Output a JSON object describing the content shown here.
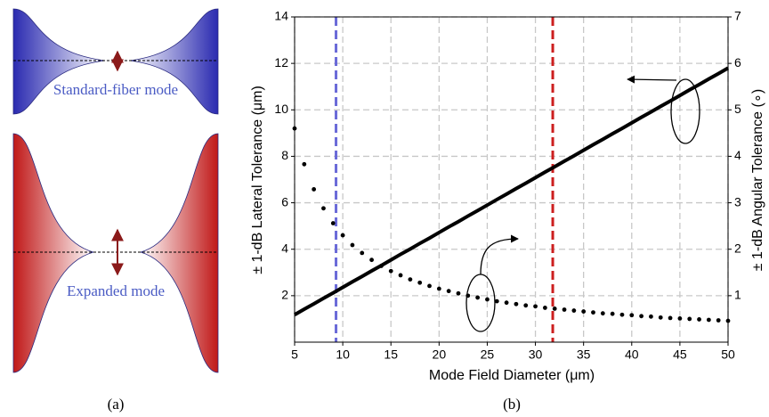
{
  "panel_a": {
    "label": "(a)",
    "top_caption": "Standard-fiber mode",
    "bottom_caption": "Expanded mode"
  },
  "chart_data": {
    "type": "line",
    "panel_label": "(b)",
    "xlabel": "Mode Field Diameter (μm)",
    "ylabel": "± 1-dB Lateral Tolerance (μm)",
    "y2label": "± 1-dB Angular Tolerance (∘)",
    "x": [
      5,
      6,
      7,
      8,
      9,
      10,
      11,
      12,
      13,
      14,
      15,
      16,
      17,
      18,
      19,
      20,
      21,
      22,
      23,
      24,
      25,
      26,
      27,
      28,
      29,
      30,
      31,
      32,
      33,
      34,
      35,
      36,
      37,
      38,
      39,
      40,
      41,
      42,
      43,
      44,
      45,
      46,
      47,
      48,
      49,
      50
    ],
    "series": [
      {
        "color": "#000000",
        "style": "line",
        "values": [
          1.18,
          1.42,
          1.65,
          1.89,
          2.12,
          2.36,
          2.6,
          2.83,
          3.07,
          3.3,
          3.54,
          3.78,
          4.01,
          4.25,
          4.48,
          4.72,
          4.96,
          5.19,
          5.43,
          5.66,
          5.9,
          6.14,
          6.37,
          6.61,
          6.84,
          7.08,
          7.32,
          7.55,
          7.79,
          8.02,
          8.26,
          8.5,
          8.73,
          8.97,
          9.2,
          9.44,
          9.68,
          9.91,
          10.15,
          10.38,
          10.62,
          10.86,
          11.09,
          11.33,
          11.56,
          11.8
        ]
      },
      {
        "color": "#000000",
        "style": "dots",
        "axis": "y2",
        "values": [
          4.6,
          3.83,
          3.29,
          2.88,
          2.56,
          2.3,
          2.09,
          1.92,
          1.77,
          1.64,
          1.53,
          1.44,
          1.35,
          1.28,
          1.21,
          1.15,
          1.1,
          1.05,
          1,
          0.96,
          0.92,
          0.88,
          0.85,
          0.82,
          0.79,
          0.77,
          0.74,
          0.72,
          0.7,
          0.68,
          0.66,
          0.64,
          0.62,
          0.61,
          0.59,
          0.58,
          0.56,
          0.55,
          0.53,
          0.52,
          0.51,
          0.5,
          0.49,
          0.48,
          0.47,
          0.46
        ]
      }
    ],
    "vlines": [
      {
        "x": 9.3,
        "color": "#6a6ad8"
      },
      {
        "x": 31.8,
        "color": "#cc1f1f"
      }
    ],
    "xlim": [
      5,
      50
    ],
    "xticks": [
      5,
      10,
      15,
      20,
      25,
      30,
      35,
      40,
      45,
      50
    ],
    "ylim": [
      0,
      14
    ],
    "yticks": [
      2,
      4,
      6,
      8,
      10,
      12,
      14
    ],
    "y2lim": [
      0,
      7
    ],
    "y2ticks": [
      1,
      2,
      3,
      4,
      5,
      6,
      7
    ],
    "grid": true
  }
}
